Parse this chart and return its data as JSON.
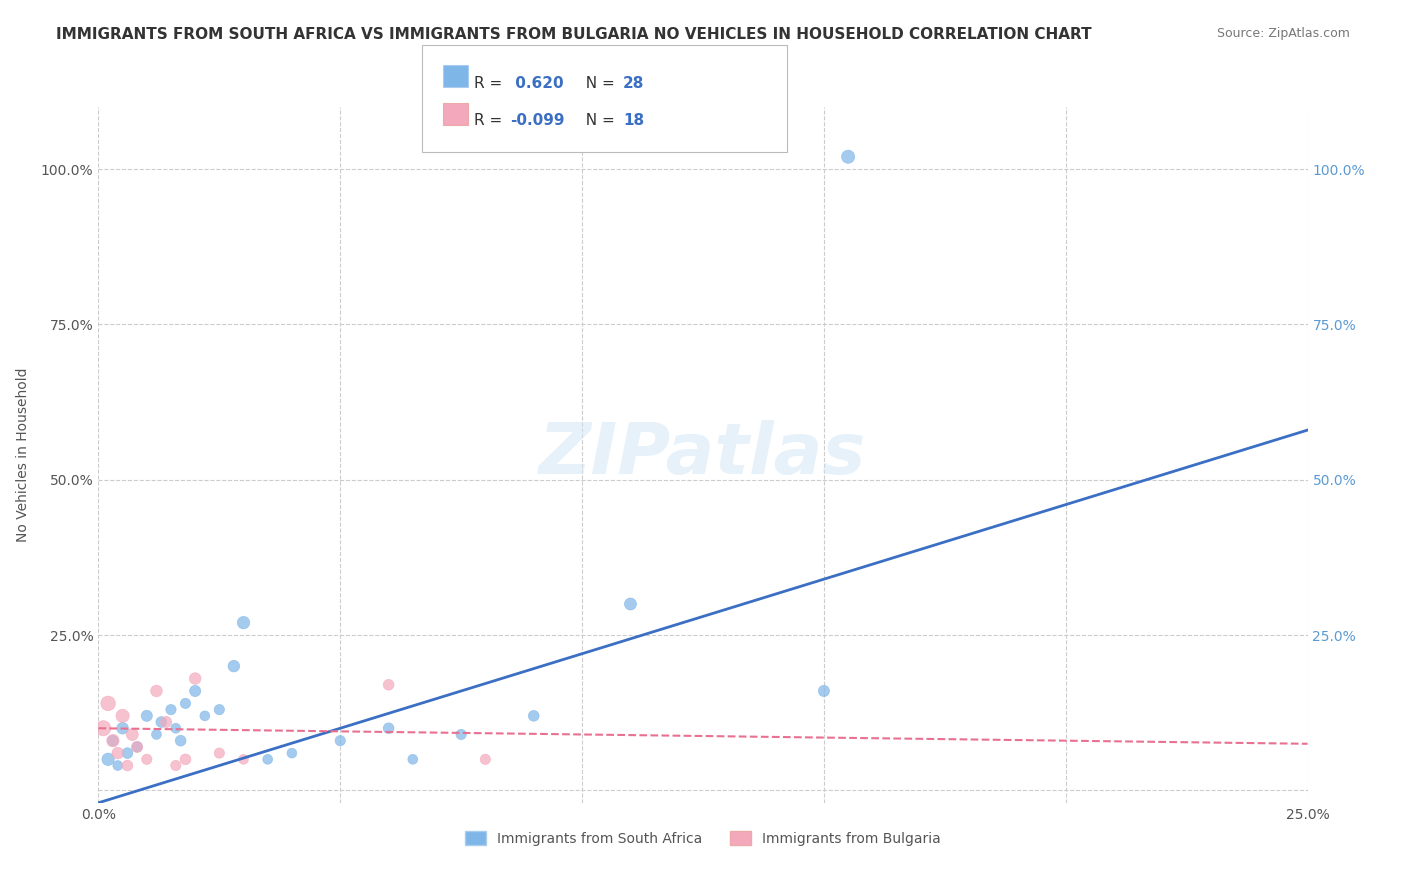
{
  "title": "IMMIGRANTS FROM SOUTH AFRICA VS IMMIGRANTS FROM BULGARIA NO VEHICLES IN HOUSEHOLD CORRELATION CHART",
  "source": "Source: ZipAtlas.com",
  "xlabel_bottom": "",
  "ylabel": "No Vehicles in Household",
  "xmin": 0.0,
  "xmax": 0.25,
  "ymin": -0.02,
  "ymax": 1.1,
  "xticks": [
    0.0,
    0.05,
    0.1,
    0.15,
    0.2,
    0.25
  ],
  "yticks": [
    0.0,
    0.25,
    0.5,
    0.75,
    1.0
  ],
  "ytick_labels": [
    "",
    "25.0%",
    "50.0%",
    "75.0%",
    "100.0%"
  ],
  "xtick_labels": [
    "0.0%",
    "",
    "",
    "",
    "",
    "25.0%"
  ],
  "r_blue": 0.62,
  "n_blue": 28,
  "r_pink": -0.099,
  "n_pink": 18,
  "blue_color": "#7EB6E8",
  "pink_color": "#F4A8BB",
  "blue_line_color": "#3B6FC4",
  "pink_line_color": "#E87090",
  "legend_label_blue": "Immigrants from South Africa",
  "legend_label_pink": "Immigrants from Bulgaria",
  "watermark": "ZIPatlas",
  "south_africa_x": [
    0.002,
    0.003,
    0.004,
    0.005,
    0.006,
    0.008,
    0.01,
    0.012,
    0.013,
    0.015,
    0.016,
    0.017,
    0.018,
    0.02,
    0.022,
    0.025,
    0.028,
    0.03,
    0.035,
    0.04,
    0.05,
    0.06,
    0.065,
    0.075,
    0.09,
    0.11,
    0.15,
    0.155
  ],
  "south_africa_y": [
    0.05,
    0.08,
    0.04,
    0.1,
    0.06,
    0.07,
    0.12,
    0.09,
    0.11,
    0.13,
    0.1,
    0.08,
    0.14,
    0.16,
    0.12,
    0.13,
    0.2,
    0.27,
    0.05,
    0.06,
    0.08,
    0.1,
    0.05,
    0.09,
    0.12,
    0.3,
    0.16,
    1.02
  ],
  "south_africa_size": [
    80,
    60,
    50,
    70,
    60,
    55,
    65,
    50,
    60,
    55,
    50,
    60,
    55,
    65,
    50,
    55,
    70,
    80,
    50,
    50,
    55,
    60,
    50,
    55,
    60,
    75,
    65,
    90
  ],
  "bulgaria_x": [
    0.001,
    0.002,
    0.003,
    0.004,
    0.005,
    0.006,
    0.007,
    0.008,
    0.01,
    0.012,
    0.014,
    0.016,
    0.018,
    0.02,
    0.025,
    0.03,
    0.06,
    0.08
  ],
  "bulgaria_y": [
    0.1,
    0.14,
    0.08,
    0.06,
    0.12,
    0.04,
    0.09,
    0.07,
    0.05,
    0.16,
    0.11,
    0.04,
    0.05,
    0.18,
    0.06,
    0.05,
    0.17,
    0.05
  ],
  "bulgaria_size": [
    120,
    110,
    80,
    70,
    90,
    60,
    75,
    65,
    55,
    70,
    65,
    55,
    60,
    70,
    55,
    50,
    60,
    55
  ],
  "blue_line_x": [
    0.0,
    0.25
  ],
  "blue_line_y": [
    -0.02,
    0.58
  ],
  "pink_line_x": [
    0.0,
    0.25
  ],
  "pink_line_y": [
    0.1,
    0.075
  ],
  "pink_line_dashed": true,
  "grid_color": "#CCCCCC",
  "background_color": "#FFFFFF",
  "title_fontsize": 11,
  "axis_label_fontsize": 10,
  "tick_fontsize": 10,
  "right_ytick_color": "#5B9BD5"
}
